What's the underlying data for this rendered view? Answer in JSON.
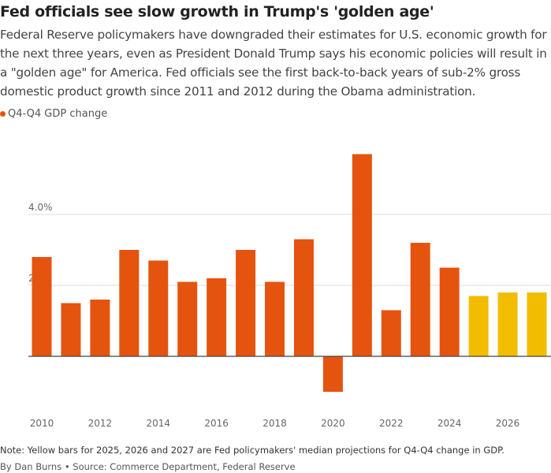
{
  "title": "Fed officials see slow growth in Trump's 'golden age'",
  "subtitle": "Federal Reserve policymakers have downgraded their estimates for U.S. economic growth for the next three years, even as President Donald Trump says his economic policies will result in a \"golden age\" for America. Fed officials see the first back-to-back years of sub-2% gross domestic product growth since 2011 and 2012 during the Obama administration.",
  "note": "Note: Yellow bars for 2025, 2026 and 2027 are Fed policymakers' median projections for Q4-Q4 change in GDP.",
  "byline": "By Dan Burns • Source: Commerce Department, Federal Reserve",
  "colors": {
    "actual": "#e5540f",
    "projection": "#f2bd00",
    "grid": "#dddddd",
    "axis": "#444444"
  },
  "chart_data": {
    "type": "bar",
    "legend": [
      {
        "name": "Q4-Q4 GDP change",
        "color": "#e5540f"
      }
    ],
    "legend_placement": "top-left",
    "categories": [
      2010,
      2011,
      2012,
      2013,
      2014,
      2015,
      2016,
      2017,
      2018,
      2019,
      2020,
      2021,
      2022,
      2023,
      2024,
      2025,
      2026,
      2027
    ],
    "values": [
      2.8,
      1.5,
      1.6,
      3.0,
      2.7,
      2.1,
      2.2,
      3.0,
      2.1,
      3.3,
      -1.0,
      5.7,
      1.3,
      3.2,
      2.5,
      1.7,
      1.8,
      1.8
    ],
    "projection_years": [
      2025,
      2026,
      2027
    ],
    "xticks": [
      "2010",
      "2012",
      "2014",
      "2016",
      "2018",
      "2020",
      "2022",
      "2024",
      "2026"
    ],
    "yticks": [
      {
        "value": 2.0,
        "label": "2.0"
      },
      {
        "value": 4.0,
        "label": "4.0%"
      }
    ],
    "ylim": [
      -1.5,
      6.0
    ],
    "grid": true
  }
}
